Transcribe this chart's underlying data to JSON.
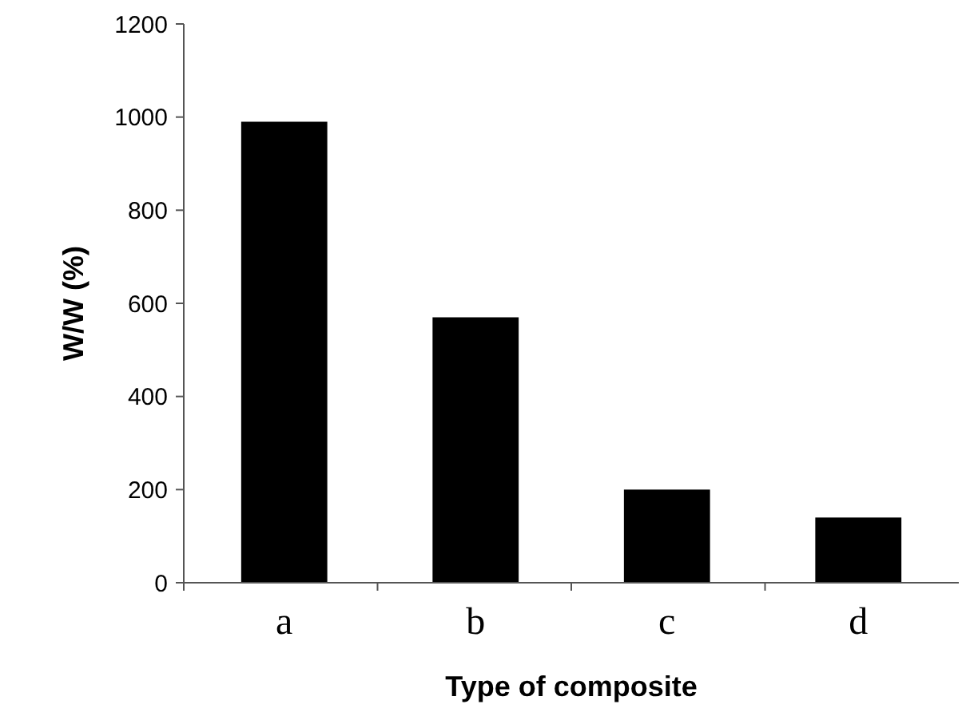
{
  "chart_data": {
    "type": "bar",
    "xlabel": "Type of composite",
    "ylabel": "W/W (%)",
    "categories": [
      "a",
      "b",
      "c",
      "d"
    ],
    "values": [
      990,
      570,
      200,
      140
    ],
    "color": "#000000",
    "ylim": [
      0,
      1200
    ],
    "yticks": [
      0,
      200,
      400,
      600,
      800,
      1000,
      1200
    ],
    "grid": false
  }
}
